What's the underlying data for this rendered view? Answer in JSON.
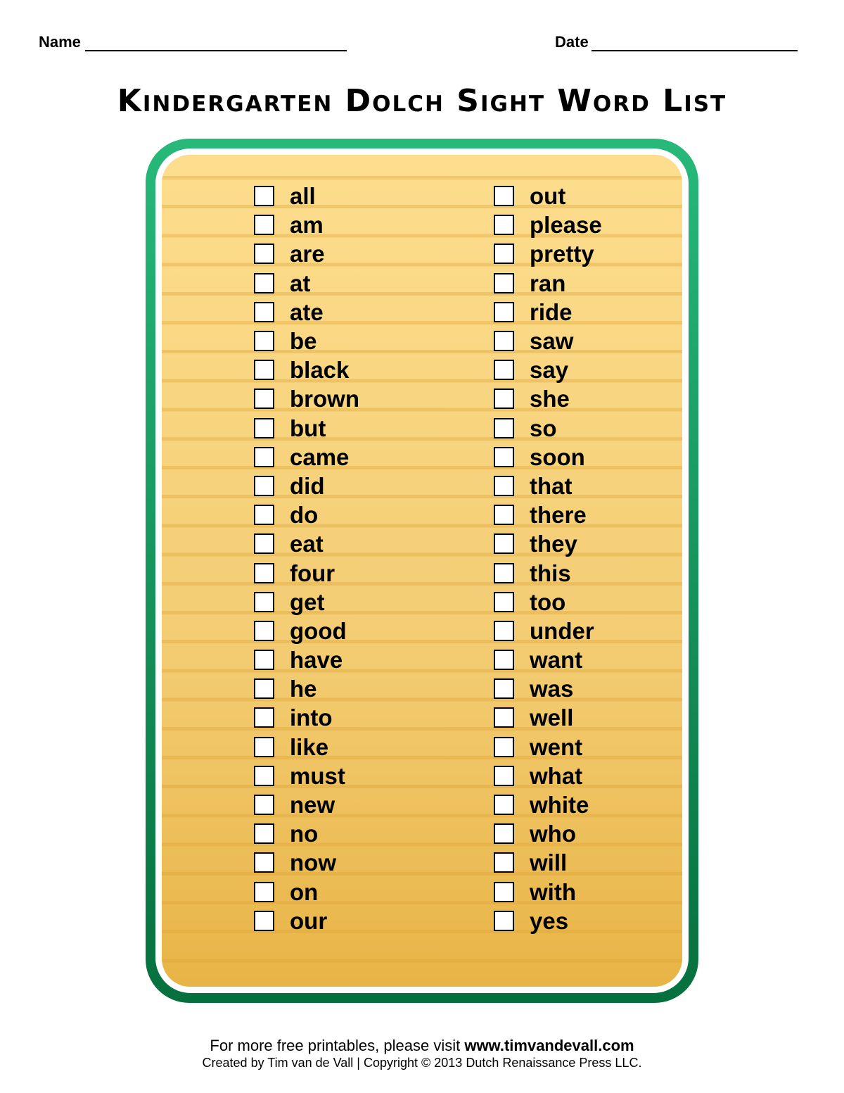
{
  "header": {
    "name_label": "Name",
    "date_label": "Date"
  },
  "title": "Kindergarten Dolch Sight Word List",
  "colors": {
    "frame": "#1fa468",
    "paper_top": "#fdde8e",
    "paper_bottom": "#e8b446"
  },
  "words_left": [
    "all",
    "am",
    "are",
    "at",
    "ate",
    "be",
    "black",
    "brown",
    "but",
    "came",
    "did",
    "do",
    "eat",
    "four",
    "get",
    "good",
    "have",
    "he",
    "into",
    "like",
    "must",
    "new",
    "no",
    "now",
    "on",
    "our"
  ],
  "words_right": [
    "out",
    "please",
    "pretty",
    "ran",
    "ride",
    "saw",
    "say",
    "she",
    "so",
    "soon",
    "that",
    "there",
    "they",
    "this",
    "too",
    "under",
    "want",
    "was",
    "well",
    "went",
    "what",
    "white",
    "who",
    "will",
    "with",
    "yes"
  ],
  "footer": {
    "line1_text": "For more free printables, please visit ",
    "line1_link": "www.timvandevall.com",
    "line2": "Created by Tim van de Vall | Copyright © 2013 Dutch Renaissance Press LLC."
  }
}
